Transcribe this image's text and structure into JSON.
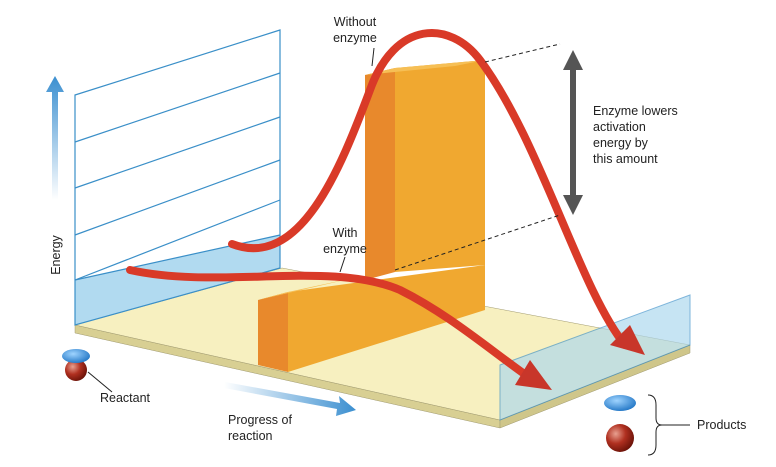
{
  "labels": {
    "without_enzyme": [
      "Without",
      "enzyme"
    ],
    "with_enzyme": [
      "With",
      "enzyme"
    ],
    "lowers": [
      "Enzyme lowers",
      "activation",
      "energy by",
      "this amount"
    ],
    "energy": "Energy",
    "reactant": "Reactant",
    "progress": [
      "Progress of",
      "reaction"
    ],
    "products": "Products"
  }
}
